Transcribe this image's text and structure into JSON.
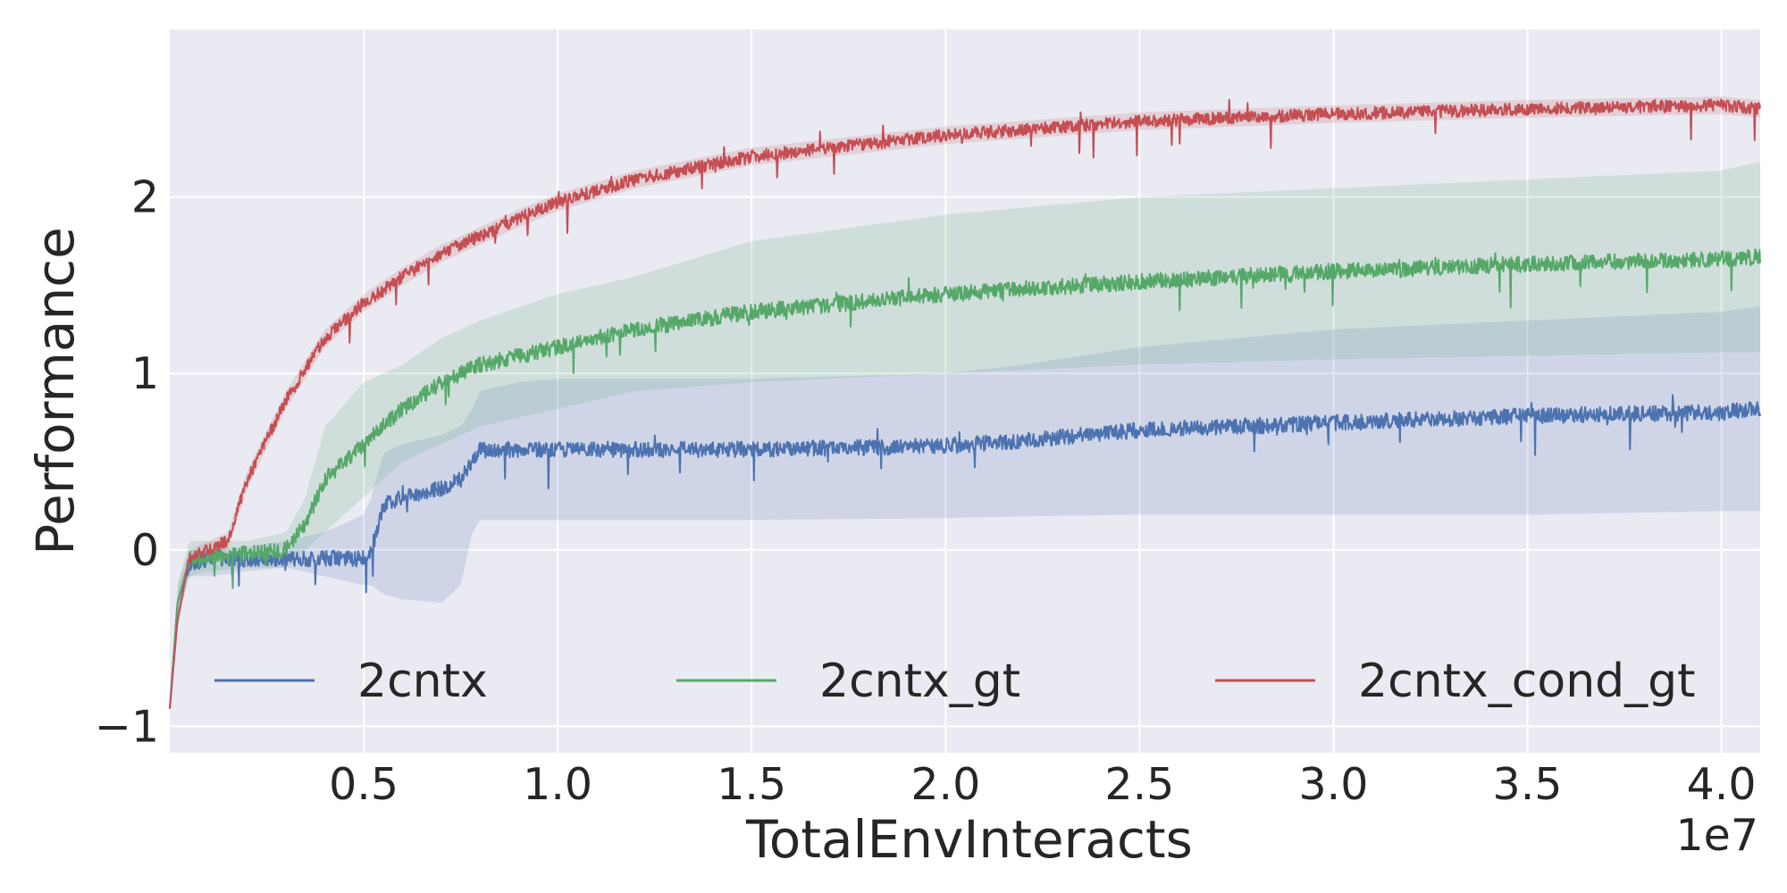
{
  "chart_data": {
    "type": "line",
    "xlabel": "TotalEnvInteracts",
    "ylabel": "Performance",
    "x_scale_label": "1e7",
    "xlim": [
      0,
      4.1
    ],
    "ylim": [
      -1.15,
      2.95
    ],
    "x_ticks": [
      0.5,
      1.0,
      1.5,
      2.0,
      2.5,
      3.0,
      3.5,
      4.0
    ],
    "x_tick_labels": [
      "0.5",
      "1.0",
      "1.5",
      "2.0",
      "2.5",
      "3.0",
      "3.5",
      "4.0"
    ],
    "y_ticks": [
      -1,
      0,
      1,
      2
    ],
    "y_tick_labels": [
      "−1",
      "0",
      "1",
      "2"
    ],
    "grid": true,
    "legend_position": "bottom",
    "legend_columns": 3,
    "colors": {
      "background": "#eaeaf2",
      "grid": "#ffffff",
      "2cntx": "#4c72b0",
      "2cntx_gt": "#55a868",
      "2cntx_cond_gt": "#c44e52"
    },
    "series": [
      {
        "name": "2cntx",
        "color": "#4c72b0",
        "x": [
          0,
          0.02,
          0.05,
          0.1,
          0.2,
          0.3,
          0.4,
          0.5,
          0.52,
          0.55,
          0.6,
          0.7,
          0.75,
          0.78,
          0.8,
          0.9,
          1.0,
          1.5,
          2.0,
          2.2,
          2.5,
          3.0,
          3.5,
          4.0,
          4.1
        ],
        "y": [
          -0.9,
          -0.3,
          -0.08,
          -0.05,
          -0.05,
          -0.05,
          -0.05,
          -0.05,
          0.0,
          0.25,
          0.3,
          0.35,
          0.4,
          0.5,
          0.57,
          0.57,
          0.57,
          0.57,
          0.59,
          0.62,
          0.68,
          0.72,
          0.76,
          0.78,
          0.8
        ],
        "band_lower": [
          -0.9,
          -0.4,
          -0.15,
          -0.15,
          -0.12,
          -0.1,
          -0.15,
          -0.2,
          -0.2,
          -0.25,
          -0.28,
          -0.3,
          -0.2,
          0.1,
          0.17,
          0.17,
          0.17,
          0.17,
          0.18,
          0.19,
          0.2,
          0.2,
          0.2,
          0.22,
          0.22
        ],
        "band_upper": [
          -0.9,
          -0.2,
          0.0,
          0.0,
          0.02,
          0.05,
          0.1,
          0.2,
          0.3,
          0.55,
          0.6,
          0.65,
          0.7,
          0.8,
          0.9,
          0.95,
          0.97,
          0.97,
          1.0,
          1.05,
          1.15,
          1.25,
          1.3,
          1.35,
          1.38
        ]
      },
      {
        "name": "2cntx_gt",
        "color": "#55a868",
        "x": [
          0,
          0.02,
          0.05,
          0.1,
          0.2,
          0.3,
          0.35,
          0.4,
          0.5,
          0.6,
          0.7,
          0.8,
          1.0,
          1.2,
          1.5,
          2.0,
          2.5,
          3.0,
          3.5,
          4.0,
          4.1
        ],
        "y": [
          -0.9,
          -0.3,
          -0.05,
          -0.05,
          -0.02,
          0.0,
          0.15,
          0.4,
          0.6,
          0.8,
          0.95,
          1.05,
          1.15,
          1.25,
          1.35,
          1.45,
          1.52,
          1.58,
          1.62,
          1.65,
          1.66
        ],
        "band_lower": [
          -0.9,
          -0.4,
          -0.15,
          -0.12,
          -0.1,
          -0.1,
          0.0,
          0.1,
          0.3,
          0.5,
          0.6,
          0.7,
          0.8,
          0.9,
          0.95,
          1.0,
          1.05,
          1.08,
          1.1,
          1.12,
          1.12
        ],
        "band_upper": [
          -0.9,
          -0.2,
          0.05,
          0.05,
          0.05,
          0.1,
          0.3,
          0.7,
          0.95,
          1.05,
          1.2,
          1.3,
          1.45,
          1.55,
          1.75,
          1.9,
          2.0,
          2.05,
          2.1,
          2.15,
          2.2
        ]
      },
      {
        "name": "2cntx_cond_gt",
        "color": "#c44e52",
        "x": [
          0,
          0.02,
          0.05,
          0.1,
          0.15,
          0.2,
          0.3,
          0.4,
          0.5,
          0.6,
          0.7,
          0.8,
          0.9,
          1.0,
          1.2,
          1.5,
          2.0,
          2.5,
          3.0,
          3.5,
          4.0,
          4.1
        ],
        "y": [
          -0.9,
          -0.4,
          -0.05,
          0.0,
          0.05,
          0.4,
          0.85,
          1.2,
          1.4,
          1.55,
          1.68,
          1.78,
          1.88,
          1.97,
          2.1,
          2.23,
          2.35,
          2.43,
          2.47,
          2.5,
          2.52,
          2.5
        ],
        "band_lower": [
          -0.9,
          -0.45,
          -0.1,
          -0.05,
          0.0,
          0.35,
          0.8,
          1.15,
          1.35,
          1.5,
          1.63,
          1.73,
          1.83,
          1.92,
          2.05,
          2.18,
          2.3,
          2.38,
          2.42,
          2.45,
          2.47,
          2.45
        ],
        "band_upper": [
          -0.9,
          -0.35,
          0.0,
          0.05,
          0.1,
          0.45,
          0.9,
          1.25,
          1.45,
          1.6,
          1.73,
          1.83,
          1.93,
          2.02,
          2.15,
          2.28,
          2.4,
          2.48,
          2.52,
          2.55,
          2.57,
          2.55
        ]
      }
    ]
  }
}
